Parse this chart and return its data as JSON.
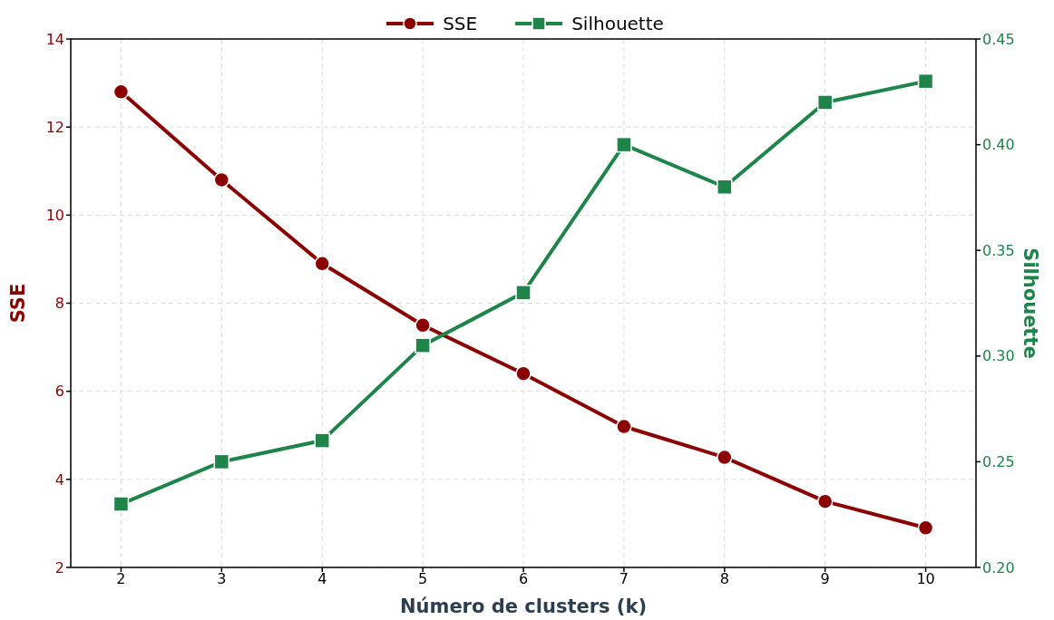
{
  "chart_data": {
    "type": "line",
    "xlabel": "Número de clusters (k)",
    "ylabel": "SSE",
    "y2label": "Silhouette",
    "x": [
      2,
      3,
      4,
      5,
      6,
      7,
      8,
      9,
      10
    ],
    "series": [
      {
        "name": "SSE",
        "color": "#8b0000",
        "marker": "circle",
        "values": [
          12.8,
          10.8,
          8.9,
          7.5,
          6.4,
          5.2,
          4.5,
          3.5,
          2.9
        ]
      },
      {
        "name": "Silhouette",
        "color": "#1e8449",
        "marker": "square",
        "axis": "y2",
        "values": [
          0.23,
          0.25,
          0.26,
          0.305,
          0.33,
          0.4,
          0.38,
          0.42,
          0.43
        ]
      }
    ],
    "xlim": [
      1.5,
      10.5
    ],
    "xticks": [
      2,
      3,
      4,
      5,
      6,
      7,
      8,
      9,
      10
    ],
    "ylim": [
      2,
      14
    ],
    "yticks": [
      2,
      4,
      6,
      8,
      10,
      12,
      14
    ],
    "y2lim": [
      0.2,
      0.45
    ],
    "y2ticks": [
      {
        "value": 0.2,
        "label": "0.20"
      },
      0.25,
      {
        "value": 0.3,
        "label": "0.30"
      },
      0.35,
      {
        "value": 0.4,
        "label": "0.40"
      },
      0.45
    ],
    "grid": true,
    "legend": "top",
    "line_style": "solid"
  }
}
